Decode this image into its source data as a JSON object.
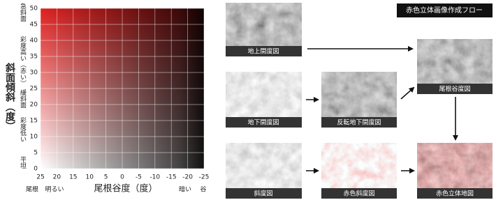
{
  "legend_chart": {
    "y_title": "斜面傾斜（度）",
    "y_side_labels": [
      "急斜面",
      "彩度高い（赤い）",
      "緩斜面",
      "彩度低い",
      "平坦"
    ],
    "x_title": "尾根谷度（度）",
    "x_side_labels": [
      "尾根",
      "明るい",
      "暗い",
      "谷"
    ],
    "xlim": [
      25,
      -25
    ],
    "xticks": [
      25,
      20,
      15,
      10,
      5,
      0,
      -5,
      -10,
      -15,
      -20,
      -25
    ],
    "ylim": [
      0,
      50
    ],
    "yticks": [
      0,
      5,
      10,
      15,
      20,
      25,
      30,
      35,
      40,
      45,
      50
    ],
    "grid": true
  },
  "flow": {
    "title": "赤色立体画像作成フロー",
    "nodes": [
      {
        "label": "地上開度図"
      },
      {
        "label": "地下開度図"
      },
      {
        "label": "反転地下開度図"
      },
      {
        "label": "尾根谷度図"
      },
      {
        "label": "斜度図"
      },
      {
        "label": "赤色斜度図"
      },
      {
        "label": "赤色立体地図"
      }
    ]
  }
}
